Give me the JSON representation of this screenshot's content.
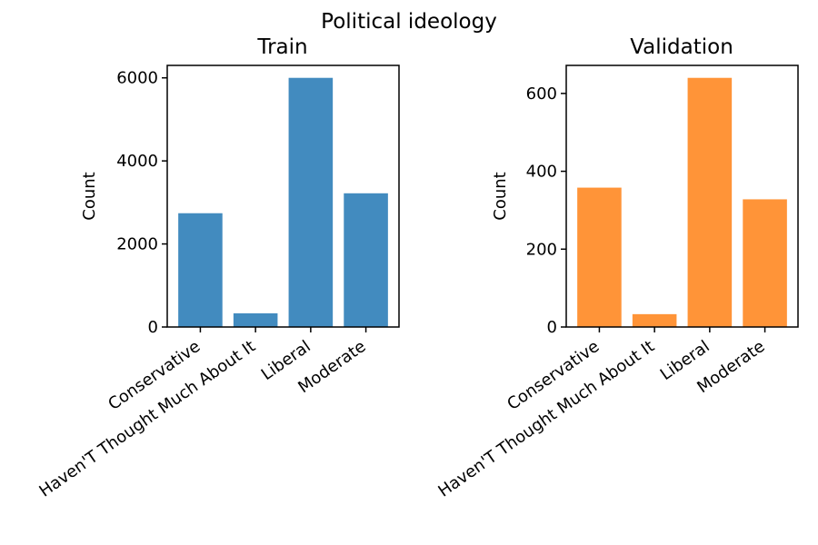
{
  "figure": {
    "title": "Political ideology"
  },
  "chart_data": [
    {
      "type": "bar",
      "title": "Train",
      "xlabel": "",
      "ylabel": "Count",
      "categories": [
        "Conservative",
        "Haven'T Thought Much About It",
        "Liberal",
        "Moderate"
      ],
      "values": [
        2740,
        330,
        6000,
        3220
      ],
      "ylim": [
        0,
        6300
      ],
      "yticks": [
        0,
        2000,
        4000,
        6000
      ],
      "color": "#428bbf",
      "grid": false
    },
    {
      "type": "bar",
      "title": "Validation",
      "xlabel": "",
      "ylabel": "Count",
      "categories": [
        "Conservative",
        "Haven'T Thought Much About It",
        "Liberal",
        "Moderate"
      ],
      "values": [
        358,
        33,
        640,
        328
      ],
      "ylim": [
        0,
        672
      ],
      "yticks": [
        0,
        200,
        400,
        600
      ],
      "color": "#ff9438",
      "grid": false
    }
  ]
}
